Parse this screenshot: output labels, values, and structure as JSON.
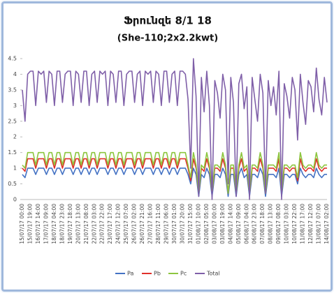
{
  "chart_data": {
    "type": "line",
    "title": "Ֆրունզե 8/1 18",
    "subtitle": "(She-110;2x2.2kwt)",
    "categories": [
      "15/07/17 00:00",
      null,
      null,
      "15/07/17 19:00",
      null,
      null,
      "16/07/17 14:00",
      null,
      null,
      "17/07/17 09:00",
      null,
      null,
      "18/07/17 04:00",
      null,
      null,
      "18/07/17 23:00",
      null,
      null,
      "19/07/17 18:00",
      null,
      null,
      "20/07/17 13:00",
      null,
      null,
      "21/07/17 08:00",
      null,
      null,
      "22/07/17 03:00",
      null,
      null,
      "22/07/17 22:00",
      null,
      null,
      "23/07/17 17:00",
      null,
      null,
      "24/07/17 12:00",
      null,
      null,
      "25/07/17 07:00",
      null,
      null,
      "26/07/17 02:00",
      null,
      null,
      "26/07/17 21:00",
      null,
      null,
      "27/07/17 16:00",
      null,
      null,
      "28/07/17 11:00",
      null,
      null,
      "29/07/17 06:00",
      null,
      null,
      "30/07/17 01:00",
      null,
      null,
      "30/07/17 20:00",
      null,
      null,
      "31/07/17 15:00",
      null,
      null,
      "01/08/17 10:00",
      null,
      null,
      "02/08/17 05:00",
      null,
      null,
      "03/08/17 00:00",
      null,
      null,
      "03/08/17 19:00",
      null,
      null,
      "04/08/17 14:00",
      null,
      null,
      "05/08/17 09:00",
      null,
      null,
      "06/08/17 04:00",
      null,
      null,
      "06/08/17 23:00",
      null,
      null,
      "07/08/17 18:00",
      null,
      null,
      "08/08/17 13:00",
      null,
      null,
      "09/08/17 08:00",
      null,
      null,
      "10/08/17 03:00",
      null,
      null,
      "10/08/17 22:00",
      null,
      null,
      "11/08/17 17:00",
      null,
      null,
      "12/08/17 12:00",
      null,
      null,
      "13/08/17 07:00",
      null,
      null,
      "14/08/17 02:00"
    ],
    "series": [
      {
        "name": "Pa",
        "color": "#4472c4",
        "values": [
          0.8,
          0.7,
          1.0,
          1.0,
          1.0,
          0.8,
          1.0,
          1.0,
          1.0,
          0.8,
          1.0,
          1.0,
          0.8,
          1.0,
          1.0,
          0.8,
          1.0,
          1.0,
          1.0,
          0.8,
          1.0,
          1.0,
          0.8,
          1.0,
          1.0,
          0.8,
          1.0,
          1.0,
          0.8,
          1.0,
          1.0,
          1.0,
          0.8,
          1.0,
          1.0,
          0.8,
          1.0,
          1.0,
          0.8,
          1.0,
          1.0,
          1.0,
          0.8,
          1.0,
          1.0,
          0.8,
          1.0,
          1.0,
          1.0,
          0.8,
          1.0,
          1.0,
          0.8,
          1.0,
          1.0,
          0.8,
          1.0,
          1.0,
          0.8,
          1.0,
          1.0,
          1.0,
          0.8,
          0.5,
          1.0,
          0.8,
          0.1,
          0.8,
          0.7,
          1.0,
          0.8,
          0.1,
          0.8,
          0.8,
          0.7,
          1.0,
          0.8,
          0.1,
          0.8,
          0.8,
          0.1,
          0.8,
          1.0,
          0.7,
          0.8,
          0.1,
          0.8,
          0.8,
          0.7,
          1.0,
          0.8,
          0.1,
          0.8,
          0.8,
          0.8,
          0.7,
          1.0,
          0.1,
          0.8,
          0.8,
          0.7,
          0.8,
          0.8,
          0.5,
          1.0,
          0.8,
          0.7,
          0.8,
          0.8,
          0.7,
          1.0,
          0.8,
          0.7,
          0.8,
          0.8
        ]
      },
      {
        "name": "Pb",
        "color": "#e0302a",
        "values": [
          1.0,
          0.9,
          1.3,
          1.3,
          1.3,
          1.0,
          1.3,
          1.3,
          1.3,
          1.0,
          1.3,
          1.3,
          1.0,
          1.3,
          1.3,
          1.0,
          1.3,
          1.3,
          1.3,
          1.0,
          1.3,
          1.3,
          1.0,
          1.3,
          1.3,
          1.0,
          1.3,
          1.3,
          1.0,
          1.3,
          1.3,
          1.3,
          1.0,
          1.3,
          1.3,
          1.0,
          1.3,
          1.3,
          1.0,
          1.3,
          1.3,
          1.3,
          1.0,
          1.3,
          1.3,
          1.0,
          1.3,
          1.3,
          1.3,
          1.0,
          1.3,
          1.3,
          1.0,
          1.3,
          1.3,
          1.0,
          1.3,
          1.3,
          1.0,
          1.3,
          1.3,
          1.3,
          1.0,
          0.6,
          1.3,
          1.0,
          0.2,
          1.0,
          0.9,
          1.3,
          1.0,
          0.2,
          1.0,
          1.0,
          0.9,
          1.3,
          1.0,
          0.2,
          1.0,
          1.0,
          0.2,
          1.0,
          1.3,
          0.9,
          1.0,
          0.2,
          1.0,
          1.0,
          0.9,
          1.3,
          1.0,
          0.2,
          1.0,
          1.0,
          1.0,
          0.9,
          1.3,
          0.2,
          1.0,
          1.0,
          0.9,
          1.0,
          1.0,
          0.6,
          1.3,
          1.0,
          0.9,
          1.0,
          1.0,
          0.9,
          1.3,
          1.0,
          0.9,
          1.0,
          1.0
        ]
      },
      {
        "name": "Pc",
        "color": "#8dc63f",
        "values": [
          1.1,
          1.0,
          1.5,
          1.5,
          1.5,
          1.1,
          1.5,
          1.5,
          1.5,
          1.1,
          1.5,
          1.5,
          1.1,
          1.5,
          1.5,
          1.1,
          1.5,
          1.5,
          1.5,
          1.1,
          1.5,
          1.5,
          1.1,
          1.5,
          1.5,
          1.1,
          1.5,
          1.5,
          1.1,
          1.5,
          1.5,
          1.5,
          1.1,
          1.5,
          1.5,
          1.1,
          1.5,
          1.5,
          1.1,
          1.5,
          1.5,
          1.5,
          1.1,
          1.5,
          1.5,
          1.1,
          1.5,
          1.5,
          1.5,
          1.1,
          1.5,
          1.5,
          1.1,
          1.5,
          1.5,
          1.1,
          1.5,
          1.5,
          1.1,
          1.5,
          1.5,
          1.5,
          1.1,
          0.7,
          1.5,
          1.1,
          0.2,
          1.1,
          1.0,
          1.5,
          1.1,
          0.2,
          1.1,
          1.1,
          1.0,
          1.5,
          1.1,
          0.2,
          1.1,
          1.1,
          0.2,
          1.1,
          1.5,
          1.0,
          1.1,
          0.2,
          1.1,
          1.1,
          1.0,
          1.5,
          1.1,
          0.2,
          1.1,
          1.1,
          1.1,
          1.0,
          1.5,
          0.2,
          1.1,
          1.1,
          1.0,
          1.1,
          1.1,
          0.7,
          1.5,
          1.1,
          1.0,
          1.1,
          1.1,
          1.0,
          1.5,
          1.1,
          1.0,
          1.1,
          1.1
        ]
      },
      {
        "name": "Total",
        "color": "#7f5fa8",
        "values": [
          3.5,
          2.5,
          4.0,
          4.1,
          4.1,
          3.0,
          4.1,
          4.0,
          4.1,
          3.1,
          4.1,
          4.0,
          3.0,
          4.1,
          4.1,
          3.1,
          4.0,
          4.1,
          4.1,
          3.0,
          4.1,
          4.0,
          3.1,
          4.1,
          4.1,
          3.0,
          4.0,
          4.1,
          3.1,
          4.1,
          4.0,
          4.1,
          3.0,
          4.1,
          4.0,
          3.1,
          4.1,
          4.1,
          3.0,
          4.0,
          4.1,
          4.1,
          3.1,
          4.0,
          4.1,
          3.0,
          4.1,
          4.0,
          4.1,
          3.1,
          4.1,
          4.0,
          3.0,
          4.1,
          4.1,
          3.1,
          4.0,
          4.1,
          3.0,
          4.1,
          4.1,
          4.0,
          3.2,
          1.0,
          4.5,
          3.3,
          0.1,
          3.9,
          2.8,
          4.1,
          3.0,
          0.0,
          3.8,
          3.4,
          2.6,
          4.0,
          3.5,
          0.5,
          3.9,
          3.1,
          0.1,
          3.7,
          4.0,
          2.9,
          3.6,
          0.0,
          3.9,
          3.2,
          2.5,
          4.0,
          3.4,
          0.2,
          3.8,
          3.0,
          3.6,
          2.7,
          4.1,
          0.0,
          3.7,
          3.3,
          2.6,
          3.9,
          3.5,
          1.9,
          4.0,
          3.1,
          2.4,
          3.8,
          3.6,
          2.8,
          4.2,
          3.2,
          2.7,
          3.9,
          3.1
        ]
      }
    ],
    "ylim": [
      0,
      4.5
    ],
    "yticks": [
      0,
      0.5,
      1,
      1.5,
      2,
      2.5,
      3,
      3.5,
      4,
      4.5
    ],
    "grid": false,
    "legend": "bottom"
  }
}
